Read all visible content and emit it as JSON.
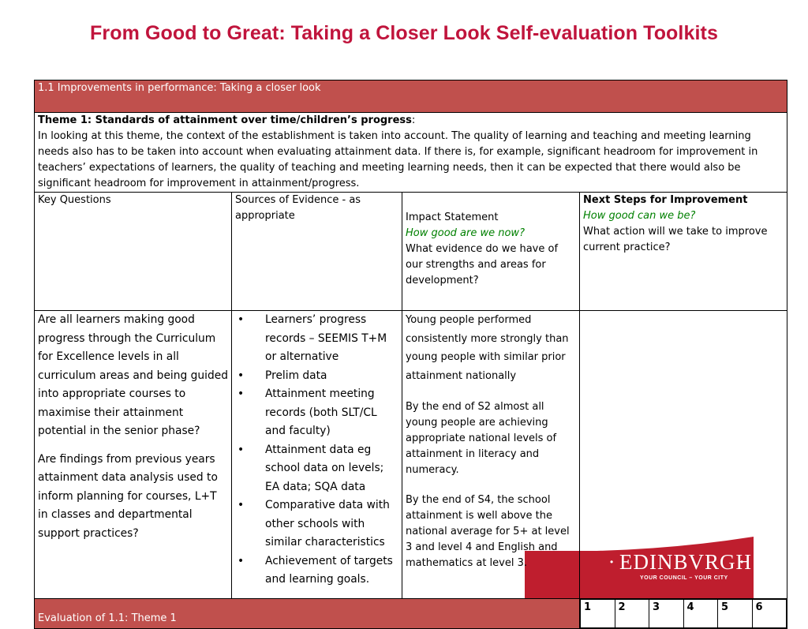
{
  "page": {
    "title": "From Good to Great: Taking a Closer Look Self-evaluation Toolkits"
  },
  "section": {
    "title": "1.1 Improvements in performance: Taking a closer look",
    "theme_heading": "Theme 1: Standards of attainment over time/children’s progress",
    "theme_colon": ":",
    "theme_text": "In looking at this theme, the context of the establishment is taken into account. The quality of learning and teaching and meeting learning needs also has to be taken into account when evaluating attainment data. If there is, for example, significant headroom for improvement in teachers’ expectations of learners, the quality of teaching and meeting learning needs, then it can be expected that there would also be significant headroom for improvement in attainment/progress."
  },
  "columns": {
    "key_questions": "Key Questions",
    "sources": "Sources of Evidence - as appropriate",
    "impact_title": "Impact Statement",
    "impact_green": "How good are we now?",
    "impact_sub": "What evidence do we have of our strengths and areas for development?",
    "next_title": "Next Steps for Improvement",
    "next_green": "How good can we be?",
    "next_sub": "What action will we take to improve current practice?"
  },
  "key_questions": [
    "Are all learners making good progress through the Curriculum for Excellence levels in all curriculum areas and being guided into appropriate courses to maximise their attainment potential in the senior phase?",
    "Are findings from previous years attainment data analysis used to inform planning for courses, L+T in classes and departmental support practices?"
  ],
  "evidence": [
    {
      "bullet": "•",
      "text": "Learners’ progress records – SEEMIS T+M or alternative"
    },
    {
      "bullet": "•",
      "text": "Prelim data"
    },
    {
      "bullet": "•",
      "text": "Attainment meeting records (both SLT/CL and faculty)"
    },
    {
      "bullet": "•",
      "text": "Attainment data eg school data on levels; EA data; SQA data"
    },
    {
      "bullet": "•",
      "text": "Comparative data with other schools with similar characteristics"
    },
    {
      "bullet": "•",
      "text": "Achievement of targets and learning goals."
    }
  ],
  "impact": [
    "Young people performed consistently more strongly than young people with similar prior attainment nationally",
    "By the end of S2 almost all young people are achieving appropriate national levels of attainment in literacy and numeracy.",
    "By the end of S4, the school attainment is well above the national average for 5+ at level 3 and level 4 and English and mathematics at level 3."
  ],
  "evaluation": {
    "label": "Evaluation of 1.1: Theme 1",
    "scores": [
      "1",
      "2",
      "3",
      "4",
      "5",
      "6"
    ]
  },
  "logo": {
    "name": "EDINBVRGH",
    "tagline": "YOUR COUNCIL – YOUR CITY",
    "dot": "•"
  },
  "colors": {
    "title": "#c0143c",
    "header_fill": "#c0504d",
    "green_text": "#008000",
    "logo_red": "#bf1e2e"
  }
}
